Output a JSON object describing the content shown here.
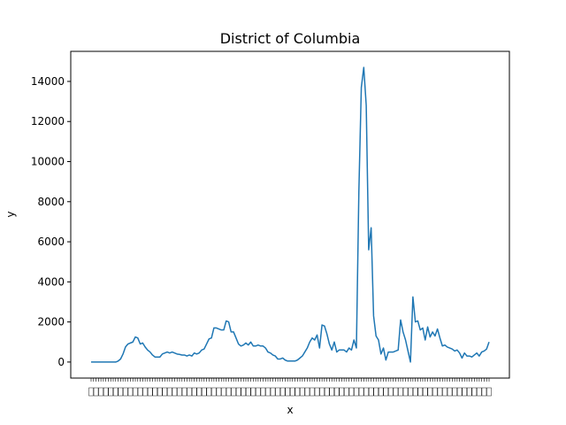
{
  "chart_data": {
    "type": "line",
    "title": "District of Columbia",
    "xlabel": "x",
    "ylabel": "y",
    "ylim": [
      -800,
      15500
    ],
    "yticks": [
      0,
      2000,
      4000,
      6000,
      8000,
      10000,
      12000,
      14000
    ],
    "xtick_labels": "dense, illegible (one per data point, overlapping)",
    "grid": false,
    "legend": false,
    "series": [
      {
        "color": "#1f77b4",
        "values": [
          0,
          0,
          0,
          0,
          0,
          0,
          0,
          0,
          0,
          0,
          0,
          50,
          150,
          400,
          750,
          900,
          950,
          1000,
          1250,
          1200,
          900,
          950,
          750,
          600,
          500,
          350,
          250,
          250,
          250,
          400,
          450,
          500,
          450,
          500,
          450,
          400,
          380,
          350,
          350,
          300,
          350,
          300,
          450,
          400,
          450,
          600,
          650,
          900,
          1150,
          1200,
          1700,
          1700,
          1650,
          1600,
          1600,
          2050,
          2000,
          1500,
          1500,
          1200,
          900,
          800,
          850,
          950,
          850,
          1000,
          800,
          800,
          850,
          800,
          800,
          700,
          500,
          450,
          350,
          300,
          150,
          150,
          200,
          100,
          50,
          50,
          50,
          50,
          100,
          200,
          300,
          500,
          700,
          1000,
          1200,
          1100,
          1350,
          700,
          1850,
          1800,
          1400,
          900,
          600,
          1000,
          500,
          600,
          600,
          600,
          500,
          700,
          600,
          1100,
          700,
          8500,
          13700,
          14700,
          12800,
          5600,
          6700,
          2300,
          1300,
          1100,
          400,
          700,
          100,
          500,
          500,
          500,
          550,
          600,
          2100,
          1500,
          1100,
          550,
          0,
          3250,
          2000,
          2050,
          1600,
          1700,
          1100,
          1750,
          1250,
          1500,
          1300,
          1650,
          1200,
          800,
          850,
          750,
          700,
          650,
          550,
          600,
          450,
          200,
          450,
          300,
          300,
          250,
          350,
          450,
          300,
          500,
          550,
          650,
          1000
        ]
      }
    ]
  }
}
